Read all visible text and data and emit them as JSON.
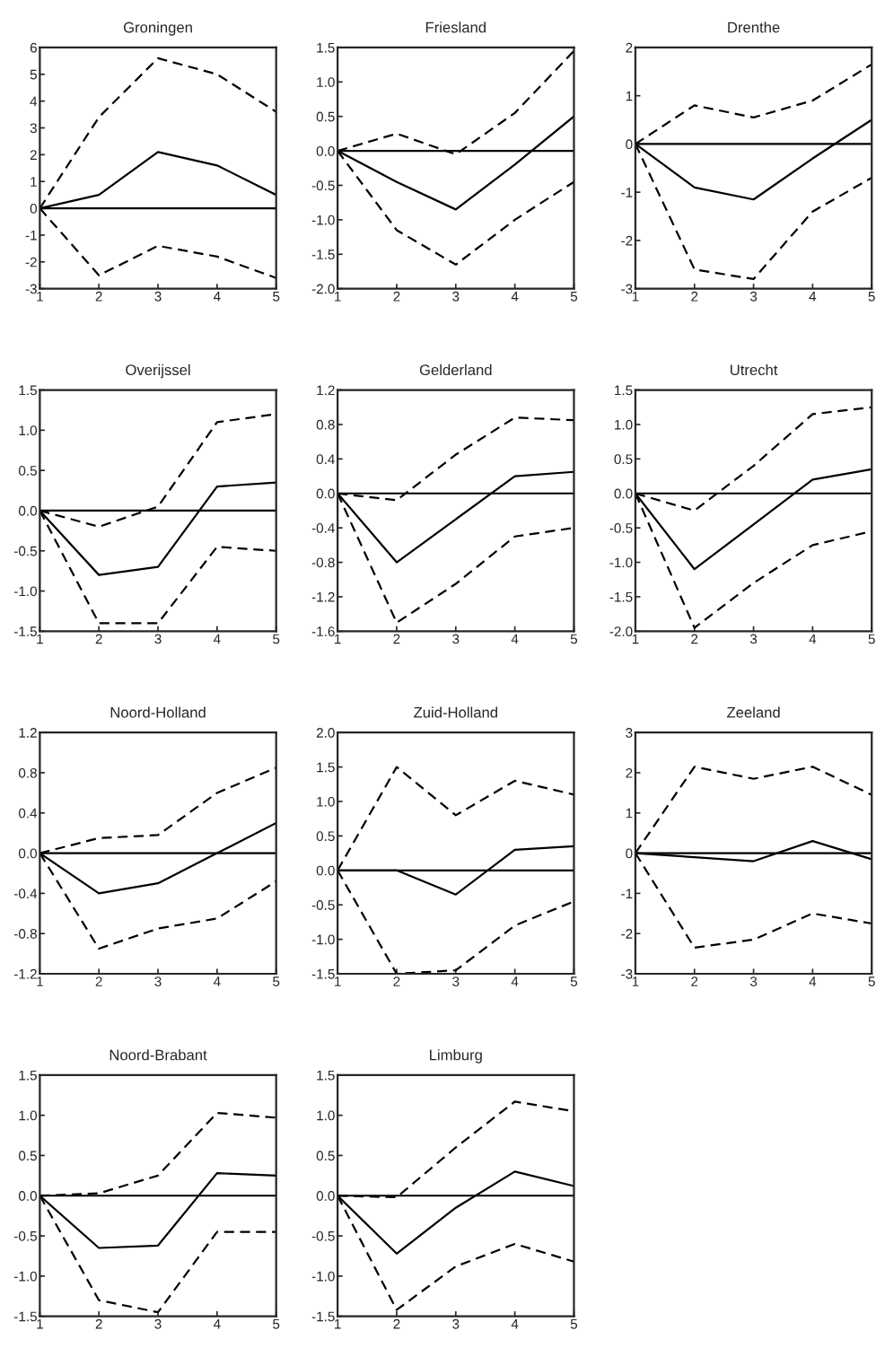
{
  "chart_data": [
    {
      "type": "line",
      "title": "Groningen",
      "x": [
        1,
        2,
        3,
        4,
        5
      ],
      "xlim": [
        1,
        5
      ],
      "xticks": [
        1,
        2,
        3,
        4,
        5
      ],
      "ylim": [
        -3,
        6
      ],
      "yticks": [
        -3,
        -2,
        -1,
        0,
        1,
        2,
        3,
        4,
        5,
        6
      ],
      "ref_lines": [
        {
          "axis": "y",
          "value": 0,
          "color": "#000000"
        }
      ],
      "series": [
        {
          "color": "#000000",
          "line_style": "dashed",
          "values": [
            0,
            3.4,
            5.6,
            5.0,
            3.6
          ]
        },
        {
          "color": "#000000",
          "line_style": "solid",
          "values": [
            0,
            0.5,
            2.1,
            1.6,
            0.5
          ]
        },
        {
          "color": "#000000",
          "line_style": "dashed",
          "values": [
            0,
            -2.5,
            -1.4,
            -1.8,
            -2.6
          ]
        }
      ]
    },
    {
      "type": "line",
      "title": "Friesland",
      "x": [
        1,
        2,
        3,
        4,
        5
      ],
      "xlim": [
        1,
        5
      ],
      "xticks": [
        1,
        2,
        3,
        4,
        5
      ],
      "ylim": [
        -2,
        1.5
      ],
      "yticks": [
        {
          "value": -2,
          "label": "-2.0"
        },
        {
          "value": -1.5,
          "label": "-1.5"
        },
        {
          "value": -1,
          "label": "-1.0"
        },
        {
          "value": -0.5,
          "label": "-0.5"
        },
        {
          "value": 0,
          "label": "0.0"
        },
        {
          "value": 0.5,
          "label": "0.5"
        },
        {
          "value": 1,
          "label": "1.0"
        },
        {
          "value": 1.5,
          "label": "1.5"
        }
      ],
      "ref_lines": [
        {
          "axis": "y",
          "value": 0,
          "color": "#000000"
        }
      ],
      "series": [
        {
          "color": "#000000",
          "line_style": "dashed",
          "values": [
            0,
            0.25,
            -0.05,
            0.55,
            1.45
          ]
        },
        {
          "color": "#000000",
          "line_style": "solid",
          "values": [
            0,
            -0.45,
            -0.85,
            -0.2,
            0.5
          ]
        },
        {
          "color": "#000000",
          "line_style": "dashed",
          "values": [
            0,
            -1.15,
            -1.65,
            -1.0,
            -0.45
          ]
        }
      ]
    },
    {
      "type": "line",
      "title": "Drenthe",
      "x": [
        1,
        2,
        3,
        4,
        5
      ],
      "xlim": [
        1,
        5
      ],
      "xticks": [
        1,
        2,
        3,
        4,
        5
      ],
      "ylim": [
        -3,
        2
      ],
      "yticks": [
        -3,
        -2,
        -1,
        0,
        1,
        2
      ],
      "ref_lines": [
        {
          "axis": "y",
          "value": 0,
          "color": "#000000"
        }
      ],
      "series": [
        {
          "color": "#000000",
          "line_style": "dashed",
          "values": [
            0,
            0.8,
            0.55,
            0.9,
            1.65
          ]
        },
        {
          "color": "#000000",
          "line_style": "solid",
          "values": [
            0,
            -0.9,
            -1.15,
            -0.3,
            0.5
          ]
        },
        {
          "color": "#000000",
          "line_style": "dashed",
          "values": [
            0,
            -2.6,
            -2.8,
            -1.4,
            -0.7
          ]
        }
      ]
    },
    {
      "type": "line",
      "title": "Overijssel",
      "x": [
        1,
        2,
        3,
        4,
        5
      ],
      "xlim": [
        1,
        5
      ],
      "xticks": [
        1,
        2,
        3,
        4,
        5
      ],
      "ylim": [
        -1.5,
        1.5
      ],
      "yticks": [
        {
          "value": -1.5,
          "label": "-1.5"
        },
        {
          "value": -1,
          "label": "-1.0"
        },
        {
          "value": -0.5,
          "label": "-0.5"
        },
        {
          "value": 0,
          "label": "0.0"
        },
        {
          "value": 0.5,
          "label": "0.5"
        },
        {
          "value": 1,
          "label": "1.0"
        },
        {
          "value": 1.5,
          "label": "1.5"
        }
      ],
      "ref_lines": [
        {
          "axis": "y",
          "value": 0,
          "color": "#000000"
        }
      ],
      "series": [
        {
          "color": "#000000",
          "line_style": "dashed",
          "values": [
            0,
            -0.2,
            0.05,
            1.1,
            1.2
          ]
        },
        {
          "color": "#000000",
          "line_style": "solid",
          "values": [
            0,
            -0.8,
            -0.7,
            0.3,
            0.35
          ]
        },
        {
          "color": "#000000",
          "line_style": "dashed",
          "values": [
            0,
            -1.4,
            -1.4,
            -0.45,
            -0.5
          ]
        }
      ]
    },
    {
      "type": "line",
      "title": "Gelderland",
      "x": [
        1,
        2,
        3,
        4,
        5
      ],
      "xlim": [
        1,
        5
      ],
      "xticks": [
        1,
        2,
        3,
        4,
        5
      ],
      "ylim": [
        -1.6,
        1.2
      ],
      "yticks": [
        -1.6,
        -1.2,
        -0.8,
        -0.4,
        {
          "value": 0,
          "label": "0.0"
        },
        0.4,
        0.8,
        1.2
      ],
      "ref_lines": [
        {
          "axis": "y",
          "value": 0,
          "color": "#000000"
        }
      ],
      "series": [
        {
          "color": "#000000",
          "line_style": "dashed",
          "values": [
            0,
            -0.08,
            0.45,
            0.88,
            0.85
          ]
        },
        {
          "color": "#000000",
          "line_style": "solid",
          "values": [
            0,
            -0.8,
            -0.3,
            0.2,
            0.25
          ]
        },
        {
          "color": "#000000",
          "line_style": "dashed",
          "values": [
            0,
            -1.5,
            -1.05,
            -0.5,
            -0.4
          ]
        }
      ]
    },
    {
      "type": "line",
      "title": "Utrecht",
      "x": [
        1,
        2,
        3,
        4,
        5
      ],
      "xlim": [
        1,
        5
      ],
      "xticks": [
        1,
        2,
        3,
        4,
        5
      ],
      "ylim": [
        -2,
        1.5
      ],
      "yticks": [
        {
          "value": -2,
          "label": "-2.0"
        },
        {
          "value": -1.5,
          "label": "-1.5"
        },
        {
          "value": -1,
          "label": "-1.0"
        },
        {
          "value": -0.5,
          "label": "-0.5"
        },
        {
          "value": 0,
          "label": "0.0"
        },
        {
          "value": 0.5,
          "label": "0.5"
        },
        {
          "value": 1,
          "label": "1.0"
        },
        {
          "value": 1.5,
          "label": "1.5"
        }
      ],
      "ref_lines": [
        {
          "axis": "y",
          "value": 0,
          "color": "#000000"
        }
      ],
      "series": [
        {
          "color": "#000000",
          "line_style": "dashed",
          "values": [
            0,
            -0.25,
            0.4,
            1.15,
            1.25
          ]
        },
        {
          "color": "#000000",
          "line_style": "solid",
          "values": [
            0,
            -1.1,
            -0.45,
            0.2,
            0.35
          ]
        },
        {
          "color": "#000000",
          "line_style": "dashed",
          "values": [
            0,
            -1.95,
            -1.3,
            -0.75,
            -0.55
          ]
        }
      ]
    },
    {
      "type": "line",
      "title": "Noord-Holland",
      "x": [
        1,
        2,
        3,
        4,
        5
      ],
      "xlim": [
        1,
        5
      ],
      "xticks": [
        1,
        2,
        3,
        4,
        5
      ],
      "ylim": [
        -1.2,
        1.2
      ],
      "yticks": [
        -1.2,
        -0.8,
        -0.4,
        {
          "value": 0,
          "label": "0.0"
        },
        0.4,
        0.8,
        1.2
      ],
      "ref_lines": [
        {
          "axis": "y",
          "value": 0,
          "color": "#000000"
        }
      ],
      "series": [
        {
          "color": "#000000",
          "line_style": "dashed",
          "values": [
            0,
            0.15,
            0.18,
            0.6,
            0.85
          ]
        },
        {
          "color": "#000000",
          "line_style": "solid",
          "values": [
            0,
            -0.4,
            -0.3,
            0.0,
            0.3
          ]
        },
        {
          "color": "#000000",
          "line_style": "dashed",
          "values": [
            0,
            -0.95,
            -0.75,
            -0.65,
            -0.28
          ]
        }
      ]
    },
    {
      "type": "line",
      "title": "Zuid-Holland",
      "x": [
        1,
        2,
        3,
        4,
        5
      ],
      "xlim": [
        1,
        5
      ],
      "xticks": [
        1,
        2,
        3,
        4,
        5
      ],
      "ylim": [
        -1.5,
        2
      ],
      "yticks": [
        {
          "value": -1.5,
          "label": "-1.5"
        },
        {
          "value": -1,
          "label": "-1.0"
        },
        {
          "value": -0.5,
          "label": "-0.5"
        },
        {
          "value": 0,
          "label": "0.0"
        },
        {
          "value": 0.5,
          "label": "0.5"
        },
        {
          "value": 1,
          "label": "1.0"
        },
        {
          "value": 1.5,
          "label": "1.5"
        },
        {
          "value": 2,
          "label": "2.0"
        }
      ],
      "ref_lines": [
        {
          "axis": "y",
          "value": 0,
          "color": "#000000"
        }
      ],
      "series": [
        {
          "color": "#000000",
          "line_style": "dashed",
          "values": [
            0,
            1.5,
            0.8,
            1.3,
            1.1
          ]
        },
        {
          "color": "#000000",
          "line_style": "solid",
          "values": [
            0,
            0.0,
            -0.35,
            0.3,
            0.35
          ]
        },
        {
          "color": "#000000",
          "line_style": "dashed",
          "values": [
            0,
            -1.5,
            -1.45,
            -0.8,
            -0.45
          ]
        }
      ]
    },
    {
      "type": "line",
      "title": "Zeeland",
      "x": [
        1,
        2,
        3,
        4,
        5
      ],
      "xlim": [
        1,
        5
      ],
      "xticks": [
        1,
        2,
        3,
        4,
        5
      ],
      "ylim": [
        -3,
        3
      ],
      "yticks": [
        -3,
        -2,
        -1,
        0,
        1,
        2,
        3
      ],
      "ref_lines": [
        {
          "axis": "y",
          "value": 0,
          "color": "#000000"
        }
      ],
      "series": [
        {
          "color": "#000000",
          "line_style": "dashed",
          "values": [
            0,
            2.15,
            1.85,
            2.15,
            1.45
          ]
        },
        {
          "color": "#000000",
          "line_style": "solid",
          "values": [
            0,
            -0.1,
            -0.2,
            0.3,
            -0.15
          ]
        },
        {
          "color": "#000000",
          "line_style": "dashed",
          "values": [
            0,
            -2.35,
            -2.15,
            -1.5,
            -1.75
          ]
        }
      ]
    },
    {
      "type": "line",
      "title": "Noord-Brabant",
      "x": [
        1,
        2,
        3,
        4,
        5
      ],
      "xlim": [
        1,
        5
      ],
      "xticks": [
        1,
        2,
        3,
        4,
        5
      ],
      "ylim": [
        -1.5,
        1.5
      ],
      "yticks": [
        {
          "value": -1.5,
          "label": "-1.5"
        },
        {
          "value": -1,
          "label": "-1.0"
        },
        {
          "value": -0.5,
          "label": "-0.5"
        },
        {
          "value": 0,
          "label": "0.0"
        },
        {
          "value": 0.5,
          "label": "0.5"
        },
        {
          "value": 1,
          "label": "1.0"
        },
        {
          "value": 1.5,
          "label": "1.5"
        }
      ],
      "ref_lines": [
        {
          "axis": "y",
          "value": 0,
          "color": "#000000"
        }
      ],
      "series": [
        {
          "color": "#000000",
          "line_style": "dashed",
          "values": [
            0,
            0.03,
            0.25,
            1.03,
            0.97
          ]
        },
        {
          "color": "#000000",
          "line_style": "solid",
          "values": [
            0,
            -0.65,
            -0.62,
            0.28,
            0.25
          ]
        },
        {
          "color": "#000000",
          "line_style": "dashed",
          "values": [
            0,
            -1.3,
            -1.45,
            -0.45,
            -0.45
          ]
        }
      ]
    },
    {
      "type": "line",
      "title": "Limburg",
      "x": [
        1,
        2,
        3,
        4,
        5
      ],
      "xlim": [
        1,
        5
      ],
      "xticks": [
        1,
        2,
        3,
        4,
        5
      ],
      "ylim": [
        -1.5,
        1.5
      ],
      "yticks": [
        {
          "value": -1.5,
          "label": "-1.5"
        },
        {
          "value": -1,
          "label": "-1.0"
        },
        {
          "value": -0.5,
          "label": "-0.5"
        },
        {
          "value": 0,
          "label": "0.0"
        },
        {
          "value": 0.5,
          "label": "0.5"
        },
        {
          "value": 1,
          "label": "1.0"
        },
        {
          "value": 1.5,
          "label": "1.5"
        }
      ],
      "ref_lines": [
        {
          "axis": "y",
          "value": 0,
          "color": "#000000"
        }
      ],
      "series": [
        {
          "color": "#000000",
          "line_style": "dashed",
          "values": [
            0,
            -0.02,
            0.6,
            1.17,
            1.05
          ]
        },
        {
          "color": "#000000",
          "line_style": "solid",
          "values": [
            0,
            -0.72,
            -0.15,
            0.3,
            0.12
          ]
        },
        {
          "color": "#000000",
          "line_style": "dashed",
          "values": [
            0,
            -1.42,
            -0.88,
            -0.6,
            -0.82
          ]
        }
      ]
    }
  ]
}
